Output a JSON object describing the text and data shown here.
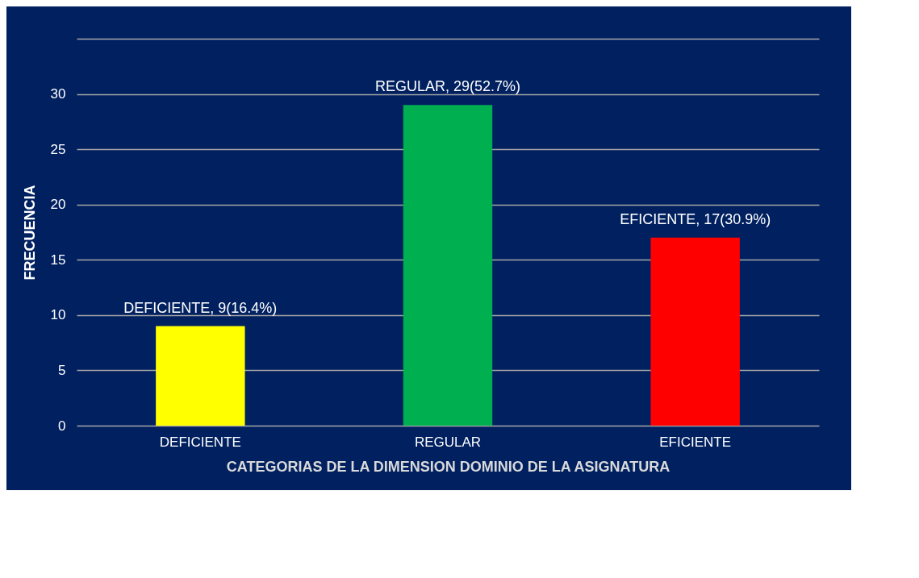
{
  "chart_data": {
    "type": "bar",
    "xlabel": "CATEGORIAS DE LA DIMENSION DOMINIO DE LA ASIGNATURA",
    "ylabel": "FRECUENCIA",
    "categories": [
      "DEFICIENTE",
      "REGULAR",
      "EFICIENTE"
    ],
    "values": [
      9,
      29,
      17
    ],
    "colors": [
      "#ffff00",
      "#00b050",
      "#ff0000"
    ],
    "value_labels": [
      "DEFICIENTE, 9(16.4%)",
      "REGULAR, 29(52.7%)",
      "EFICIENTE, 17(30.9%)"
    ],
    "ylim": [
      0,
      35
    ],
    "yticks": [
      0,
      5,
      10,
      15,
      20,
      25,
      30,
      {
        "value": 35,
        "label": null
      }
    ],
    "grid": true
  }
}
